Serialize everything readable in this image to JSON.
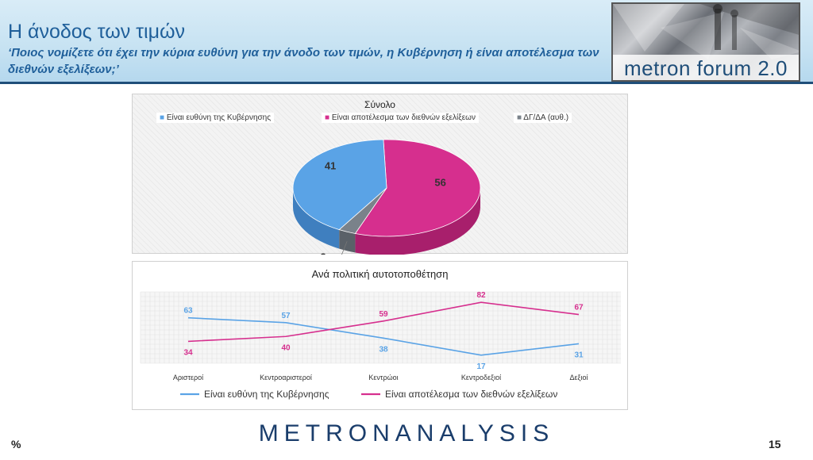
{
  "header": {
    "title": "Η άνοδος των τιμών",
    "subtitle": "‘Ποιος νομίζετε ότι έχει την κύρια ευθύνη για την άνοδο των τιμών, η Κυβέρνηση ή είναι αποτέλεσμα των διεθνών εξελίξεων;’",
    "logo_text": "metron forum 2.0"
  },
  "colors": {
    "blue": "#5aa3e6",
    "pink": "#d62f8e",
    "grey": "#7a828a",
    "header_text": "#1f5f9a"
  },
  "chart_data": [
    {
      "type": "pie",
      "title": "Σύνολο",
      "legend": [
        "Είναι ευθύνη της Κυβέρνησης",
        "Είναι αποτέλεσμα των διεθνών εξελίξεων",
        "ΔΓ/ΔΑ (αυθ.)"
      ],
      "legend_position": "top",
      "slices": [
        {
          "label": "Είναι ευθύνη της Κυβέρνησης",
          "value": 41
        },
        {
          "label": "Είναι αποτέλεσμα των διεθνών εξελίξεων",
          "value": 56
        },
        {
          "label": "ΔΓ/ΔΑ (αυθ.)",
          "value": 3
        }
      ]
    },
    {
      "type": "line",
      "title": "Ανά πολιτική αυτοτοποθέτηση",
      "categories": [
        "Αριστεροί",
        "Κεντροαριστεροί",
        "Κεντρώοι",
        "Κεντροδεξιοί",
        "Δεξιοί"
      ],
      "series": [
        {
          "name": "Είναι ευθύνη της Κυβέρνησης",
          "values": [
            63,
            57,
            38,
            17,
            31
          ]
        },
        {
          "name": "Είναι αποτέλεσμα των διεθνών εξελίξεων",
          "values": [
            34,
            40,
            59,
            82,
            67
          ]
        }
      ],
      "legend_position": "bottom",
      "grid": true
    }
  ],
  "footer": {
    "unit": "%",
    "brand": "METRONANALYSIS",
    "page_number": "15"
  }
}
